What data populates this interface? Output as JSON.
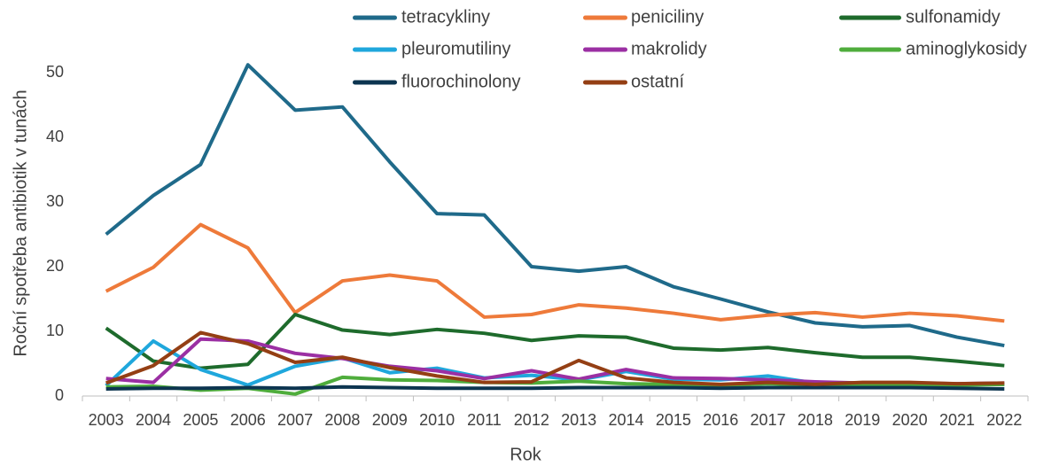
{
  "chart_data": {
    "type": "line",
    "y_label": "Roční spotřeba antibiotik v tunách",
    "x_label": "Rok",
    "categories": [
      "2003",
      "2004",
      "2005",
      "2006",
      "2007",
      "2008",
      "2009",
      "2010",
      "2011",
      "2012",
      "2013",
      "2014",
      "2015",
      "2016",
      "2017",
      "2018",
      "2019",
      "2020",
      "2021",
      "2022"
    ],
    "ylim": [
      0,
      60
    ],
    "yticks": [
      0,
      10,
      20,
      30,
      40,
      50
    ],
    "grid": false,
    "legend": "top",
    "series": [
      {
        "name": "tetracykliny",
        "color": "#1f6a8a",
        "values": [
          25,
          31,
          35.8,
          51.2,
          44.2,
          44.7,
          36.2,
          28.2,
          28,
          20,
          19.3,
          20,
          16.9,
          15,
          13,
          11.3,
          10.7,
          10.9,
          9.1,
          7.8
        ]
      },
      {
        "name": "peniciliny",
        "color": "#ee7a3a",
        "values": [
          16.2,
          19.9,
          26.5,
          22.9,
          12.9,
          17.8,
          18.7,
          17.8,
          12.2,
          12.6,
          14.1,
          13.6,
          12.8,
          11.8,
          12.5,
          12.9,
          12.2,
          12.8,
          12.4,
          11.6
        ]
      },
      {
        "name": "sulfonamidy",
        "color": "#1e6b2c",
        "values": [
          10.5,
          5.4,
          4.3,
          4.9,
          12.6,
          10.2,
          9.5,
          10.3,
          9.7,
          8.6,
          9.3,
          9.1,
          7.4,
          7.1,
          7.5,
          6.7,
          6,
          6,
          5.4,
          4.7
        ]
      },
      {
        "name": "pleuromutiliny",
        "color": "#1fa7dc",
        "values": [
          1.6,
          8.5,
          4.1,
          1.7,
          4.6,
          5.9,
          3.6,
          4.3,
          2.8,
          3.2,
          2.5,
          3.8,
          2.6,
          2.5,
          3.1,
          2.0,
          1.9,
          2.0,
          1.8,
          1.8
        ]
      },
      {
        "name": "makrolidy",
        "color": "#9b2fa3",
        "values": [
          2.7,
          2.1,
          8.8,
          8.5,
          6.6,
          5.8,
          4.6,
          3.9,
          2.7,
          3.9,
          2.6,
          4.1,
          2.8,
          2.7,
          2.5,
          2.2,
          2.0,
          2.0,
          1.9,
          2.0
        ]
      },
      {
        "name": "aminoglykosidy",
        "color": "#4fad3c",
        "values": [
          1.4,
          1.5,
          0.9,
          1.2,
          0.3,
          2.9,
          2.5,
          2.4,
          2.1,
          2.0,
          2.3,
          1.9,
          1.8,
          1.6,
          1.9,
          1.7,
          1.6,
          1.8,
          1.7,
          1.8
        ]
      },
      {
        "name": "fluorochinolony",
        "color": "#0d3550",
        "values": [
          1.1,
          1.2,
          1.2,
          1.3,
          1.2,
          1.4,
          1.3,
          1.2,
          1.2,
          1.2,
          1.3,
          1.3,
          1.3,
          1.2,
          1.3,
          1.3,
          1.3,
          1.3,
          1.2,
          1.1
        ]
      },
      {
        "name": "ostatní",
        "color": "#943f14",
        "values": [
          2.0,
          4.7,
          9.8,
          8.1,
          5.2,
          6.0,
          4.4,
          3.1,
          2.1,
          2.2,
          5.5,
          2.8,
          2.1,
          1.8,
          2.1,
          1.8,
          2.1,
          2.1,
          1.9,
          2.0
        ]
      }
    ]
  }
}
